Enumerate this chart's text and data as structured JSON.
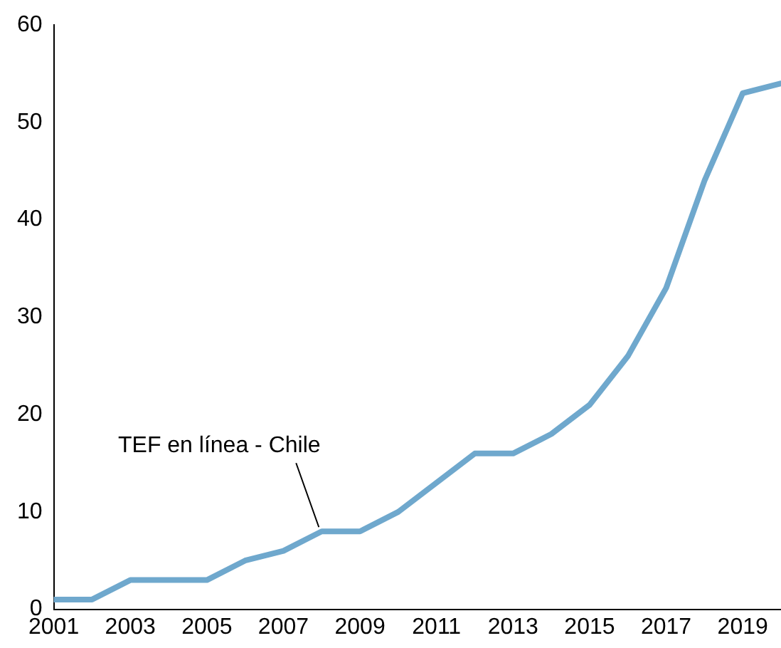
{
  "chart_data": {
    "type": "line",
    "x": [
      2001,
      2002,
      2003,
      2004,
      2005,
      2006,
      2007,
      2008,
      2009,
      2010,
      2011,
      2012,
      2013,
      2014,
      2015,
      2016,
      2017,
      2018,
      2019,
      2020
    ],
    "series": [
      {
        "color": "#6fa8cd",
        "values": [
          1,
          1,
          3,
          3,
          3,
          5,
          6,
          8,
          8,
          10,
          13,
          16,
          16,
          18,
          21,
          26,
          33,
          44,
          53,
          54
        ]
      }
    ],
    "xlim": [
      2001,
      2020
    ],
    "xticks": [
      2001,
      2003,
      2005,
      2007,
      2009,
      2011,
      2013,
      2015,
      2017,
      2019
    ],
    "ylim": [
      0,
      60
    ],
    "yticks": [
      0,
      10,
      20,
      30,
      40,
      50,
      60
    ],
    "annotations": [
      {
        "text": "TEF en línea - Chile",
        "x": 2008,
        "y": 8
      }
    ],
    "grid": false,
    "legend": false,
    "marker": "none",
    "line_style": "solid"
  }
}
